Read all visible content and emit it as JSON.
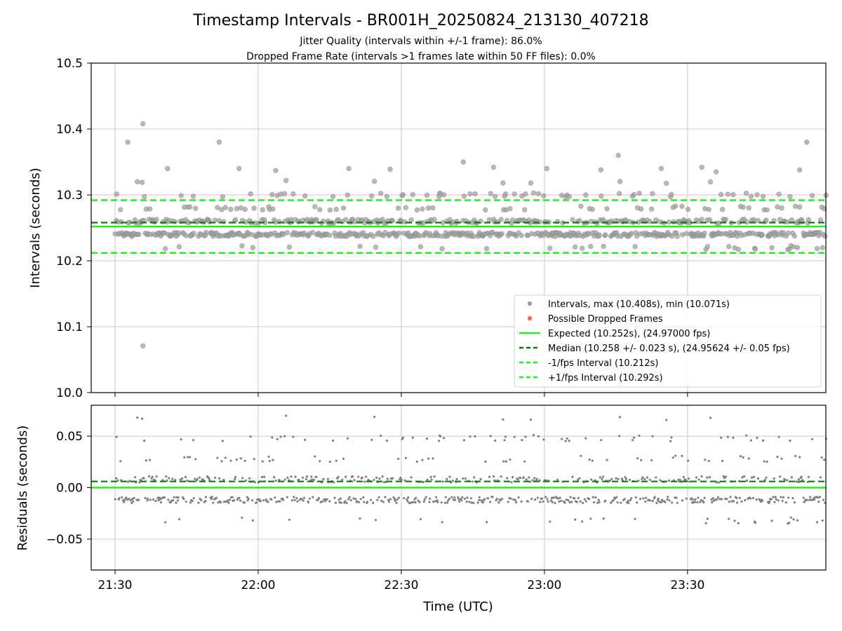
{
  "figure": {
    "title": "Timestamp Intervals - BR001H_20250824_213130_407218",
    "subtitle1": "Jitter Quality (intervals within +/-1 frame): 86.0%",
    "subtitle2": "Dropped Frame Rate (intervals >1 frames late within 50 FF files): 0.0%",
    "xlabel": "Time (UTC)"
  },
  "colors": {
    "points": "#7f7f7f",
    "scatter_fill": "#a0a0a0",
    "dropped": "#ff6666",
    "expected": "#22ee22",
    "median": "#0b7a0b",
    "bounds": "#22ee22",
    "grid": "#c8c8c8"
  },
  "chart_data": [
    {
      "type": "scatter",
      "ylabel": "Intervals (seconds)",
      "ylim": [
        10.0,
        10.5
      ],
      "yticks": [
        "10.0",
        "10.1",
        "10.2",
        "10.3",
        "10.4",
        "10.5"
      ],
      "xticks": [
        "21:30",
        "22:00",
        "22:30",
        "23:00",
        "23:30"
      ],
      "xlim": [
        "21:25",
        "23:59"
      ],
      "grid": true,
      "legend_position": "lower-right",
      "reference_lines": {
        "expected": 10.252,
        "median": 10.258,
        "minus_1_fps": 10.212,
        "plus_1_fps": 10.292
      },
      "stats": {
        "max": 10.408,
        "min": 10.071
      },
      "outliers": [
        {
          "time": "21:32:40",
          "value": 10.38
        },
        {
          "time": "21:35:50",
          "value": 10.408
        },
        {
          "time": "21:35:50",
          "value": 10.071
        },
        {
          "time": "21:34:40",
          "value": 10.32
        },
        {
          "time": "21:41:00",
          "value": 10.34
        },
        {
          "time": "21:51:50",
          "value": 10.38
        },
        {
          "time": "21:56:00",
          "value": 10.34
        },
        {
          "time": "22:03:40",
          "value": 10.337
        },
        {
          "time": "22:19:00",
          "value": 10.34
        },
        {
          "time": "22:27:40",
          "value": 10.339
        },
        {
          "time": "22:43:00",
          "value": 10.35
        },
        {
          "time": "22:49:20",
          "value": 10.342
        },
        {
          "time": "23:00:30",
          "value": 10.34
        },
        {
          "time": "23:11:50",
          "value": 10.338
        },
        {
          "time": "23:15:30",
          "value": 10.36
        },
        {
          "time": "23:24:30",
          "value": 10.34
        },
        {
          "time": "23:33:00",
          "value": 10.342
        },
        {
          "time": "23:36:00",
          "value": 10.335
        },
        {
          "time": "23:55:00",
          "value": 10.38
        },
        {
          "time": "23:53:30",
          "value": 10.338
        }
      ],
      "legend": [
        {
          "label": "Intervals, max (10.408s), min (10.071s)",
          "marker": "dot",
          "color": "#a0a0a0"
        },
        {
          "label": "Possible Dropped Frames",
          "marker": "dot",
          "color": "#ff6666"
        },
        {
          "label": "Expected (10.252s), (24.97000 fps)",
          "marker": "solid",
          "color": "#22ee22"
        },
        {
          "label": "Median (10.258 +/- 0.023 s), (24.95624 +/- 0.05 fps)",
          "marker": "dashed",
          "color": "#0b7a0b"
        },
        {
          "label": "-1/fps Interval (10.212s)",
          "marker": "dashed",
          "color": "#22ee22"
        },
        {
          "label": "+1/fps Interval (10.292s)",
          "marker": "dashed",
          "color": "#22ee22"
        }
      ]
    },
    {
      "type": "scatter",
      "ylabel": "Residuals (seconds)",
      "ylim": [
        -0.08,
        0.08
      ],
      "yticks": [
        "−0.05",
        "0.00",
        "0.05"
      ],
      "xticks": [
        "21:30",
        "22:00",
        "22:30",
        "23:00",
        "23:30"
      ],
      "grid": true,
      "reference_lines": {
        "zero": 0.0,
        "median_offset": 0.006
      }
    }
  ]
}
